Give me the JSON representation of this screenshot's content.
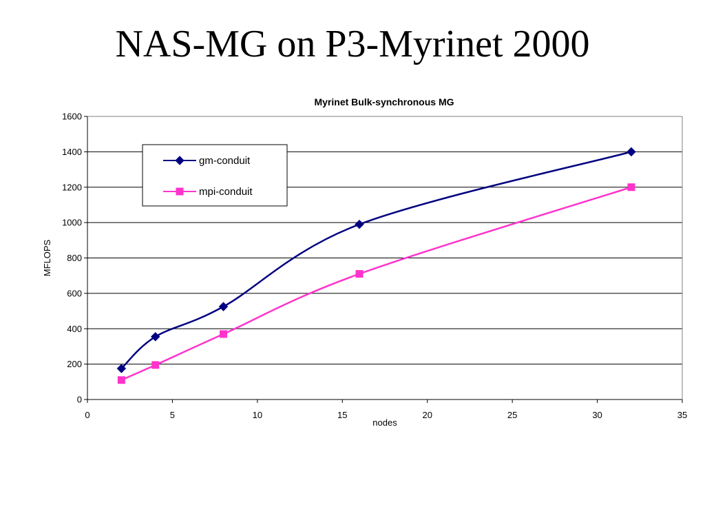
{
  "slide": {
    "title": "NAS-MG on P3-Myrinet 2000"
  },
  "chart_data": {
    "type": "line",
    "title": "Myrinet Bulk-synchronous MG",
    "xlabel": "nodes",
    "ylabel": "MFLOPS",
    "xlim": [
      0,
      35
    ],
    "ylim": [
      0,
      1600
    ],
    "xticks": [
      0,
      5,
      10,
      15,
      20,
      25,
      30,
      35
    ],
    "yticks": [
      0,
      200,
      400,
      600,
      800,
      1000,
      1200,
      1400,
      1600
    ],
    "grid": "horizontal",
    "legend_position": "top-left",
    "x": [
      2,
      4,
      8,
      16,
      32
    ],
    "series": [
      {
        "name": "gm-conduit",
        "marker": "diamond",
        "color": "#000080",
        "values": [
          175,
          355,
          525,
          990,
          1400
        ]
      },
      {
        "name": "mpi-conduit",
        "marker": "square",
        "color": "#ff33cc",
        "values": [
          110,
          195,
          370,
          710,
          1200
        ]
      }
    ]
  }
}
